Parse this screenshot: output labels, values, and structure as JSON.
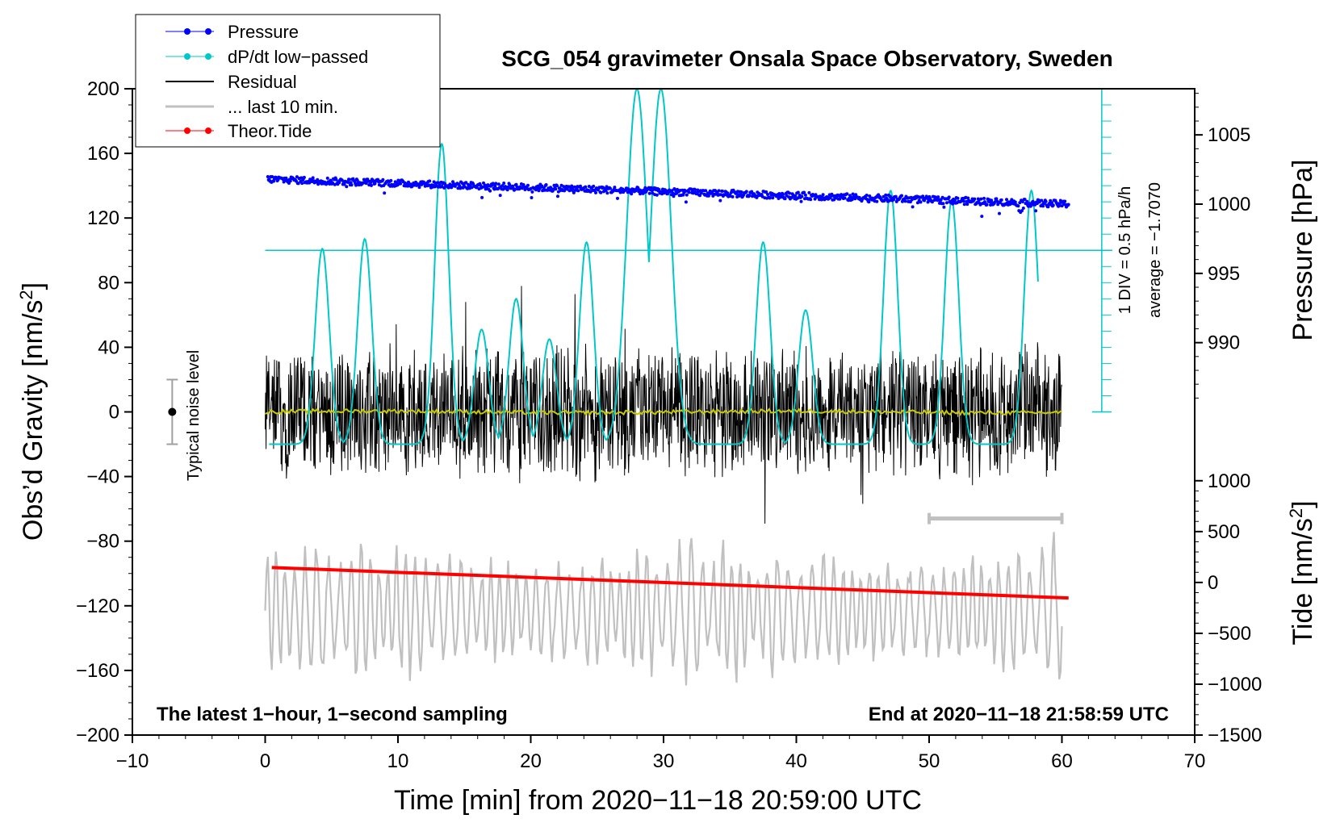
{
  "chart_data": {
    "type": "line",
    "title": "SCG_054 gravimeter Onsala Space Observatory, Sweden",
    "xlabel": "Time [min] from 2020−11−18 20:59:00 UTC",
    "ylabel_main": "Obs’d Gravity [nm/s",
    "ylabel_main_sup": "2",
    "ylabel_main_end": "]",
    "ylabel_pressure": "Pressure [hPa]",
    "ylabel_tide": "Tide [nm/s",
    "ylabel_tide_sup": "2",
    "ylabel_tide_end": "]",
    "xlim": [
      -10,
      70
    ],
    "ylim": [
      -200,
      200
    ],
    "x_ticks": [
      -10,
      0,
      10,
      20,
      30,
      40,
      50,
      60,
      70
    ],
    "x_tick_labels": [
      "−10",
      "0",
      "10",
      "20",
      "30",
      "40",
      "50",
      "60",
      "70"
    ],
    "y_ticks": [
      200,
      160,
      120,
      80,
      40,
      0,
      -40,
      -80,
      -120,
      -160,
      -200
    ],
    "y_tick_labels": [
      "200",
      "160",
      "120",
      "80",
      "40",
      "0",
      "−40",
      "−80",
      "−120",
      "−160",
      "−200"
    ],
    "pressure_ticks": [
      1005,
      1000,
      995,
      990
    ],
    "pressure_tick_labels": [
      "1005",
      "1000",
      "995",
      "990"
    ],
    "pressure_axis": {
      "value_at_y200": 1008.33,
      "value_at_y0": 985.0
    },
    "tide_ticks": [
      1000,
      500,
      0,
      -500,
      -1000,
      -1500
    ],
    "tide_tick_labels": [
      "1000",
      "500",
      "0",
      "−500",
      "−1000",
      "−1500"
    ],
    "tide_axis": {
      "value_at_y_minus200": -1500,
      "value_at_y_minus30": 1200
    },
    "series": [
      {
        "name": "Pressure",
        "color": "#0000ff",
        "style": "dots",
        "x_range": [
          0.2,
          60.5
        ],
        "values_hpa": [
          1001.8,
          1000.0
        ]
      },
      {
        "name": "dP/dt low−passed",
        "color": "#00c8c8",
        "style": "line",
        "peaks_x": [
          4.3,
          7.5,
          13.3,
          16.3,
          18.9,
          21.4,
          24.2,
          28.0,
          29.8,
          37.5,
          40.7,
          47.1,
          51.7,
          57.7
        ],
        "peaks_y": [
          101,
          107,
          166,
          51,
          70,
          45,
          105,
          200,
          200,
          105,
          63,
          137,
          131,
          137
        ],
        "baseline_y": 100
      },
      {
        "name": "Residual",
        "color": "#000000",
        "style": "line",
        "x_range": [
          0,
          60
        ],
        "amplitude": 45
      },
      {
        "name": "... last 10 min.",
        "color": "#c0c0c0",
        "style": "line",
        "x_range": [
          0,
          60
        ],
        "center_y": -123,
        "amplitude": 40
      },
      {
        "name": "Theor.Tide",
        "color": "#ff0000",
        "style": "line",
        "x": [
          0.5,
          60.5
        ],
        "values_tide": [
          147,
          -153
        ]
      }
    ],
    "mean_line": {
      "color": "#c8c800",
      "y": 0
    },
    "noise_bar": {
      "x": -7,
      "y_center": 0,
      "y_half": 20,
      "label": "Typical noise level"
    },
    "window_bar": {
      "x_range": [
        50,
        60
      ],
      "y": -66
    },
    "pressure_scale": {
      "label_div": "1 DIV = 0.5 hPa/h",
      "label_avg": "average = −1.7070",
      "x": 63,
      "y_top": 200,
      "y_bottom": 0,
      "divisions": 20
    },
    "annotations": {
      "bottom_left": "The latest 1−hour, 1−second sampling",
      "bottom_right": "End at 2020−11−18 21:58:59 UTC"
    },
    "legend": [
      "Pressure",
      "dP/dt low−passed",
      "Residual",
      "... last 10 min.",
      "Theor.Tide"
    ]
  }
}
